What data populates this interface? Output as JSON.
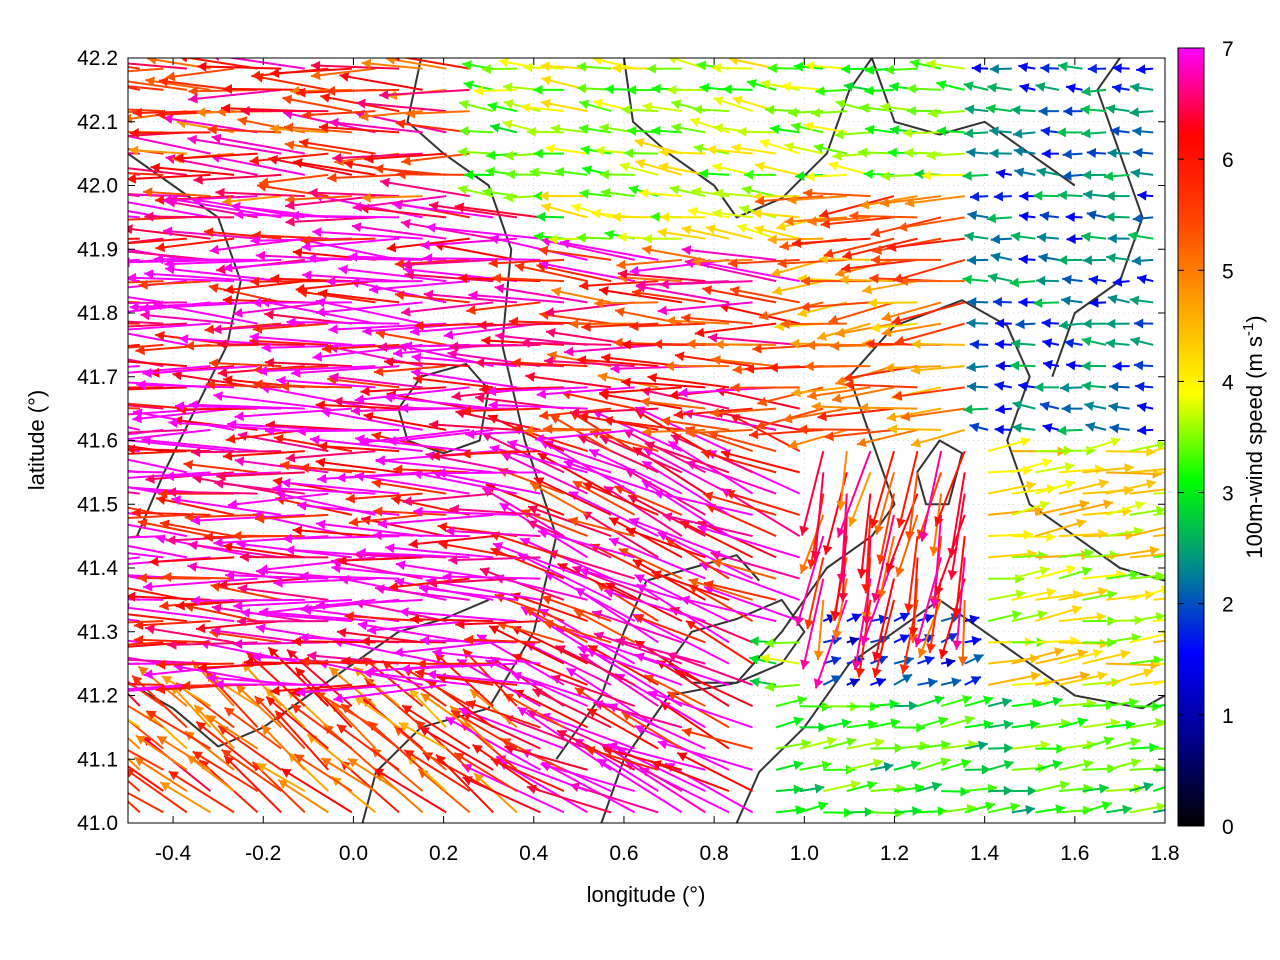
{
  "chart_data": {
    "type": "vector-field",
    "xlabel": "longitude (°)",
    "ylabel": "latitude (°)",
    "xlim": [
      -0.5,
      1.8
    ],
    "ylim": [
      41.0,
      42.2
    ],
    "x_ticks": [
      "-0.4",
      "-0.2",
      "0.0",
      "0.2",
      "0.4",
      "0.6",
      "0.8",
      "1.0",
      "1.2",
      "1.4",
      "1.6",
      "1.8"
    ],
    "x_tick_values": [
      -0.4,
      -0.2,
      0.0,
      0.2,
      0.4,
      0.6,
      0.8,
      1.0,
      1.2,
      1.4,
      1.6,
      1.8
    ],
    "y_ticks": [
      "41.0",
      "41.1",
      "41.2",
      "41.3",
      "41.4",
      "41.5",
      "41.6",
      "41.7",
      "41.8",
      "41.9",
      "42.0",
      "42.1",
      "42.2"
    ],
    "y_tick_values": [
      41.0,
      41.1,
      41.2,
      41.3,
      41.4,
      41.5,
      41.6,
      41.7,
      41.8,
      41.9,
      42.0,
      42.1,
      42.2
    ],
    "grid": "dotted",
    "colorbar": {
      "label_main": "100m-wind speed (m s",
      "label_sup": "-1",
      "label_close": ")",
      "min": 0,
      "max": 7,
      "ticks": [
        "0",
        "1",
        "2",
        "3",
        "4",
        "5",
        "6",
        "7"
      ],
      "tick_values": [
        0,
        1,
        2,
        3,
        4,
        5,
        6,
        7
      ],
      "colors": [
        "#000000",
        "#00008b",
        "#0000ff",
        "#008b8b",
        "#00ff00",
        "#ffff00",
        "#ffa500",
        "#ff4500",
        "#ff0000",
        "#ff00ff"
      ]
    },
    "regions": [
      {
        "lon_range": [
          -0.5,
          0.45
        ],
        "lat_range": [
          41.2,
          41.95
        ],
        "speed": 6.8,
        "u": -6.6,
        "v": 0.3
      },
      {
        "lon_range": [
          -0.5,
          0.3
        ],
        "lat_range": [
          41.95,
          42.2
        ],
        "speed": 5.5,
        "u": -5.0,
        "v": 0.2
      },
      {
        "lon_range": [
          0.45,
          1.0
        ],
        "lat_range": [
          41.6,
          41.9
        ],
        "speed": 5.8,
        "u": -5.8,
        "v": 0.3
      },
      {
        "lon_range": [
          0.4,
          1.0
        ],
        "lat_range": [
          41.3,
          41.6
        ],
        "speed": 6.2,
        "u": -4.8,
        "v": 2.0
      },
      {
        "lon_range": [
          0.5,
          1.0
        ],
        "lat_range": [
          41.9,
          42.2
        ],
        "speed": 2.8,
        "u": -2.0,
        "v": 0.3
      },
      {
        "lon_range": [
          1.0,
          1.4
        ],
        "lat_range": [
          41.6,
          42.0
        ],
        "speed": 4.5,
        "u": -4.2,
        "v": -0.5
      },
      {
        "lon_range": [
          1.0,
          1.4
        ],
        "lat_range": [
          41.35,
          41.6
        ],
        "speed": 5.5,
        "u": -1.0,
        "v": -5.0
      },
      {
        "lon_range": [
          1.4,
          1.8
        ],
        "lat_range": [
          41.6,
          42.2
        ],
        "speed": 1.5,
        "u": -1.3,
        "v": 0.1
      },
      {
        "lon_range": [
          1.4,
          1.8
        ],
        "lat_range": [
          41.2,
          41.6
        ],
        "speed": 3.2,
        "u": 2.8,
        "v": 0.4
      },
      {
        "lon_range": [
          0.9,
          1.8
        ],
        "lat_range": [
          41.0,
          41.2
        ],
        "speed": 2.2,
        "u": 2.0,
        "v": 0.3
      },
      {
        "lon_range": [
          -0.5,
          0.4
        ],
        "lat_range": [
          41.0,
          41.2
        ],
        "speed": 5.0,
        "u": -3.5,
        "v": 2.8
      },
      {
        "lon_range": [
          0.4,
          0.9
        ],
        "lat_range": [
          41.0,
          41.3
        ],
        "speed": 6.5,
        "u": -5.5,
        "v": 2.5
      },
      {
        "lon_range": [
          1.0,
          1.4
        ],
        "lat_range": [
          41.2,
          41.35
        ],
        "speed": 1.2,
        "u": 0.8,
        "v": 0.3
      }
    ]
  }
}
